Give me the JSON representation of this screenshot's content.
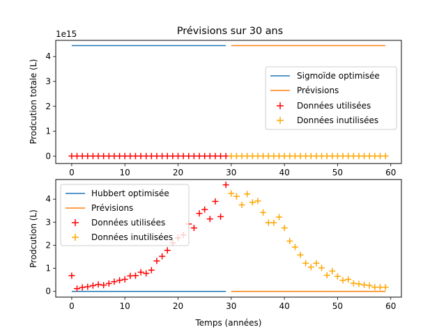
{
  "chart_data": [
    {
      "type": "line+scatter",
      "title": "Prévisions sur 30 ans",
      "xlabel": "",
      "ylabel": "Prodcution totale (L)",
      "offset_text": "1e15",
      "xlim": [
        -3,
        62
      ],
      "ylim": [
        -0.3,
        4.65
      ],
      "xticks": [
        0,
        10,
        20,
        30,
        40,
        50,
        60
      ],
      "yticks": [
        0,
        1,
        2,
        3,
        4
      ],
      "grid": false,
      "legend_position": "center-right",
      "legend": [
        "Sigmoïde optimisée",
        "Prévisions",
        "Données utilisées",
        "Données inutilisées"
      ],
      "lines": [
        {
          "name": "Sigmoïde optimisée",
          "color": "#1f77b4",
          "x": [
            0,
            29
          ],
          "y": [
            4.44,
            4.44
          ]
        },
        {
          "name": "Prévisions",
          "color": "#ff7f0e",
          "x": [
            30,
            59
          ],
          "y": [
            4.44,
            4.44
          ]
        }
      ],
      "scatter": [
        {
          "name": "Données utilisées",
          "color": "#ff0000",
          "marker": "+",
          "x": [
            0,
            1,
            2,
            3,
            4,
            5,
            6,
            7,
            8,
            9,
            10,
            11,
            12,
            13,
            14,
            15,
            16,
            17,
            18,
            19,
            20,
            21,
            22,
            23,
            24,
            25,
            26,
            27,
            28,
            29
          ],
          "y": [
            0.0,
            0.0,
            0.0,
            0.0,
            0.0,
            0.0,
            0.0,
            0.0,
            0.0,
            0.0,
            0.0,
            0.0,
            0.0,
            0.0,
            0.0,
            0.0,
            0.0,
            0.0,
            0.0,
            0.0,
            0.0,
            0.0,
            0.0,
            0.0,
            0.0,
            0.0,
            0.0,
            0.0,
            0.0,
            0.0
          ]
        },
        {
          "name": "Données inutilisées",
          "color": "#ffa500",
          "marker": "+",
          "x": [
            30,
            31,
            32,
            33,
            34,
            35,
            36,
            37,
            38,
            39,
            40,
            41,
            42,
            43,
            44,
            45,
            46,
            47,
            48,
            49,
            50,
            51,
            52,
            53,
            54,
            55,
            56,
            57,
            58,
            59
          ],
          "y": [
            0.0,
            0.0,
            0.0,
            0.0,
            0.0,
            0.0,
            0.0,
            0.0,
            0.0,
            0.0,
            0.0,
            0.0,
            0.0,
            0.0,
            0.0,
            0.0,
            0.0,
            0.0,
            0.0,
            0.0,
            0.0,
            0.0,
            0.0,
            0.0,
            0.0,
            0.0,
            0.0,
            0.0,
            0.0,
            0.0
          ]
        }
      ]
    },
    {
      "type": "line+scatter",
      "title": "",
      "xlabel": "Temps (années)",
      "ylabel": "Prodcution (L)",
      "xlim": [
        -3,
        62
      ],
      "ylim": [
        -0.25,
        4.85
      ],
      "xticks": [
        0,
        10,
        20,
        30,
        40,
        50,
        60
      ],
      "yticks": [
        0,
        1,
        2,
        3,
        4
      ],
      "grid": false,
      "legend_position": "top-left",
      "legend": [
        "Hubbert optimisée",
        "Prévisions",
        "Données utilisées",
        "Données inutilisées"
      ],
      "lines": [
        {
          "name": "Hubbert optimisée",
          "color": "#1f77b4",
          "x": [
            0,
            29
          ],
          "y": [
            0.0,
            0.0
          ]
        },
        {
          "name": "Prévisions",
          "color": "#ff7f0e",
          "x": [
            30,
            59
          ],
          "y": [
            0.0,
            0.0
          ]
        }
      ],
      "scatter": [
        {
          "name": "Données utilisées",
          "color": "#ff0000",
          "marker": "+",
          "x": [
            0,
            1,
            2,
            3,
            4,
            5,
            6,
            7,
            8,
            9,
            10,
            11,
            12,
            13,
            14,
            15,
            16,
            17,
            18,
            19,
            20,
            21,
            22,
            23,
            24,
            25,
            26,
            27,
            28,
            29
          ],
          "y": [
            0.68,
            0.12,
            0.17,
            0.2,
            0.25,
            0.3,
            0.27,
            0.34,
            0.42,
            0.48,
            0.52,
            0.67,
            0.68,
            0.83,
            0.78,
            0.92,
            1.32,
            1.52,
            1.78,
            2.1,
            2.32,
            2.45,
            2.92,
            2.75,
            3.38,
            3.55,
            3.14,
            3.9,
            3.24,
            4.62
          ]
        },
        {
          "name": "Données inutilisées",
          "color": "#ffa500",
          "marker": "+",
          "x": [
            30,
            31,
            32,
            33,
            34,
            35,
            36,
            37,
            38,
            39,
            40,
            41,
            42,
            43,
            44,
            45,
            46,
            47,
            48,
            49,
            50,
            51,
            52,
            53,
            54,
            55,
            56,
            57,
            58,
            59
          ],
          "y": [
            4.25,
            4.12,
            3.75,
            4.22,
            3.86,
            3.92,
            3.42,
            2.98,
            2.98,
            3.22,
            2.75,
            2.18,
            1.92,
            1.58,
            1.22,
            1.05,
            1.22,
            1.02,
            0.7,
            0.88,
            0.65,
            0.48,
            0.52,
            0.35,
            0.32,
            0.28,
            0.25,
            0.18,
            0.18,
            0.18
          ]
        }
      ]
    }
  ]
}
